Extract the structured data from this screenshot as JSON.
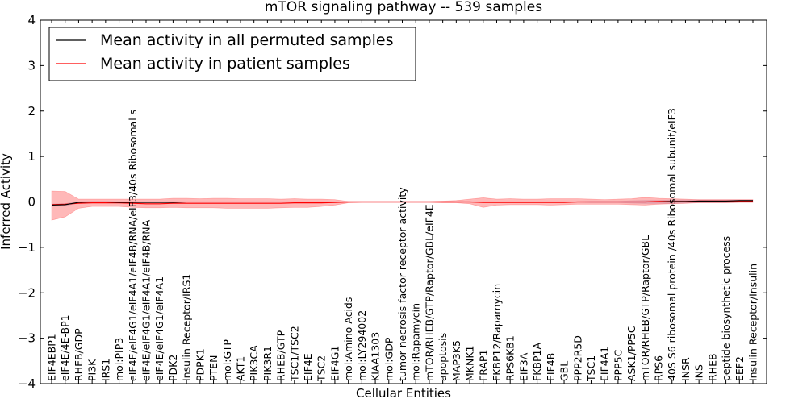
{
  "chart_data": {
    "type": "line",
    "title": "mTOR signaling pathway -- 539 samples",
    "xlabel": "Cellular Entities",
    "ylabel": "Inferred Activity",
    "ylim": [
      -4,
      4
    ],
    "yticks": [
      "4",
      "3",
      "2",
      "1",
      "0",
      "−1",
      "−2",
      "−3",
      "−4"
    ],
    "ytick_values": [
      4,
      3,
      2,
      1,
      0,
      -1,
      -2,
      -3,
      -4
    ],
    "legend": {
      "location": "top-left",
      "entries": [
        {
          "label": "Mean activity in all permuted samples",
          "color": "#000000"
        },
        {
          "label": "Mean activity in patient samples",
          "color": "#ff0000"
        }
      ]
    },
    "colors": {
      "permuted": "#000000",
      "patient": "#ff0000",
      "patient_band": "#ff0000",
      "permuted_band": "#9999cc"
    },
    "categories": [
      "EIF4EBP1",
      "eIF4E/4E-BP1",
      "RHEB/GDP",
      "PI3K",
      "IRS1",
      "mol:PIP3",
      "eIF4E/eIF4G1/eIF4A1/eIF4B/RNA/eIF3/40s Ribosomal s",
      "eIF4E/eIF4G1/eIF4A1/eIF4B/RNA",
      "eIF4E/eIF4G1/eIF4A1",
      "PDK2",
      "Insulin Receptor/IRS1",
      "PDPK1",
      "PTEN",
      "mol:GTP",
      "AKT1",
      "PIK3CA",
      "PIK3R1",
      "RHEB/GTP",
      "TSC1/TSC2",
      "EIF4E",
      "TSC2",
      "EIF4G1",
      "mol:Amino Acids",
      "mol:LY294002",
      "KIAA1303",
      "mol:GDP",
      "tumor necrosis factor receptor activity",
      "mol:Rapamycin",
      "mTOR/RHEB/GTP/Raptor/GBL/eIF4E",
      "apoptosis",
      "MAP3K5",
      "MKNK1",
      "FRAP1",
      "FKBP12/Rapamycin",
      "RPS6KB1",
      "EIF3A",
      "FKBP1A",
      "EIF4B",
      "GBL",
      "PPP2R5D",
      "TSC1",
      "EIF4A1",
      "PPP5C",
      "ASK1/PP5C",
      "mTOR/RHEB/GTP/Raptor/GBL",
      "RPS6",
      "40S S6 ribosomal protein /40s Ribosomal subunit/eIF3",
      "INSR",
      "INS",
      "RHEB",
      "peptide biosynthetic process",
      "EEF2",
      "Insulin Receptor/Insulin"
    ],
    "series": [
      {
        "name": "Mean activity in patient samples",
        "values": [
          -0.06,
          -0.05,
          -0.03,
          -0.02,
          -0.02,
          -0.02,
          -0.03,
          -0.04,
          -0.04,
          -0.03,
          -0.03,
          -0.03,
          -0.03,
          -0.03,
          -0.03,
          -0.03,
          -0.03,
          -0.03,
          -0.02,
          -0.02,
          -0.02,
          -0.01,
          0.0,
          0.0,
          0.0,
          0.0,
          0.0,
          0.0,
          0.0,
          0.0,
          0.0,
          0.0,
          -0.01,
          -0.01,
          -0.01,
          -0.01,
          -0.01,
          -0.01,
          -0.01,
          0.0,
          0.0,
          0.0,
          0.0,
          0.0,
          0.0,
          0.01,
          0.01,
          0.01,
          0.02,
          0.02,
          0.02,
          0.02,
          0.02
        ],
        "lower": [
          -0.4,
          -0.33,
          -0.14,
          -0.1,
          -0.1,
          -0.1,
          -0.12,
          -0.13,
          -0.13,
          -0.12,
          -0.13,
          -0.13,
          -0.13,
          -0.14,
          -0.14,
          -0.14,
          -0.14,
          -0.13,
          -0.12,
          -0.12,
          -0.1,
          -0.07,
          -0.02,
          -0.01,
          -0.01,
          -0.01,
          -0.01,
          -0.01,
          -0.01,
          -0.02,
          -0.02,
          -0.04,
          -0.12,
          -0.07,
          -0.06,
          -0.06,
          -0.06,
          -0.07,
          -0.06,
          -0.05,
          -0.05,
          -0.05,
          -0.05,
          -0.06,
          -0.07,
          -0.05,
          -0.04,
          -0.03,
          -0.02,
          -0.02,
          -0.02,
          -0.01,
          -0.01
        ],
        "upper": [
          0.24,
          0.23,
          0.06,
          0.06,
          0.06,
          0.06,
          0.06,
          0.06,
          0.06,
          0.08,
          0.08,
          0.07,
          0.08,
          0.08,
          0.07,
          0.07,
          0.07,
          0.06,
          0.07,
          0.06,
          0.06,
          0.05,
          0.01,
          0.01,
          0.01,
          0.01,
          0.01,
          0.01,
          0.01,
          0.02,
          0.03,
          0.06,
          0.09,
          0.06,
          0.07,
          0.06,
          0.06,
          0.07,
          0.07,
          0.07,
          0.06,
          0.05,
          0.06,
          0.07,
          0.1,
          0.08,
          0.07,
          0.06,
          0.05,
          0.05,
          0.05,
          0.05,
          0.05
        ]
      },
      {
        "name": "Mean activity in all permuted samples",
        "values": [
          -0.07,
          -0.06,
          -0.01,
          0.0,
          0.0,
          -0.01,
          -0.01,
          -0.01,
          -0.01,
          -0.01,
          0.0,
          0.0,
          0.0,
          0.0,
          0.0,
          0.0,
          0.0,
          0.0,
          0.0,
          0.0,
          0.0,
          0.0,
          0.0,
          0.0,
          0.0,
          0.0,
          0.0,
          0.0,
          0.0,
          0.0,
          0.0,
          0.0,
          0.0,
          0.0,
          0.0,
          0.0,
          0.0,
          0.0,
          0.0,
          0.0,
          0.0,
          0.0,
          0.0,
          0.0,
          0.0,
          0.0,
          0.01,
          0.01,
          0.02,
          0.02,
          0.02,
          0.03,
          0.03
        ],
        "lower": [
          -0.1,
          -0.09,
          -0.03,
          -0.02,
          -0.02,
          -0.02,
          -0.02,
          -0.02,
          -0.02,
          -0.02,
          -0.01,
          -0.01,
          -0.01,
          -0.01,
          -0.01,
          -0.01,
          -0.01,
          -0.01,
          -0.01,
          -0.01,
          -0.01,
          -0.01,
          -0.01,
          -0.01,
          -0.01,
          -0.01,
          -0.01,
          -0.01,
          -0.01,
          -0.01,
          -0.01,
          -0.01,
          -0.01,
          -0.01,
          -0.01,
          -0.01,
          -0.01,
          -0.01,
          -0.01,
          -0.01,
          -0.02,
          -0.02,
          -0.02,
          -0.03,
          -0.04,
          -0.04,
          -0.04,
          -0.03,
          -0.02,
          -0.02,
          -0.02,
          -0.01,
          -0.01
        ],
        "upper": [
          -0.04,
          -0.03,
          0.01,
          0.02,
          0.02,
          0.01,
          0.01,
          0.01,
          0.01,
          0.01,
          0.01,
          0.01,
          0.01,
          0.01,
          0.01,
          0.01,
          0.01,
          0.01,
          0.01,
          0.01,
          0.01,
          0.01,
          0.01,
          0.01,
          0.01,
          0.01,
          0.01,
          0.01,
          0.01,
          0.01,
          0.01,
          0.01,
          0.01,
          0.01,
          0.01,
          0.01,
          0.01,
          0.01,
          0.01,
          0.01,
          0.02,
          0.02,
          0.02,
          0.03,
          0.04,
          0.04,
          0.05,
          0.05,
          0.05,
          0.05,
          0.05,
          0.05,
          0.05
        ]
      }
    ]
  }
}
